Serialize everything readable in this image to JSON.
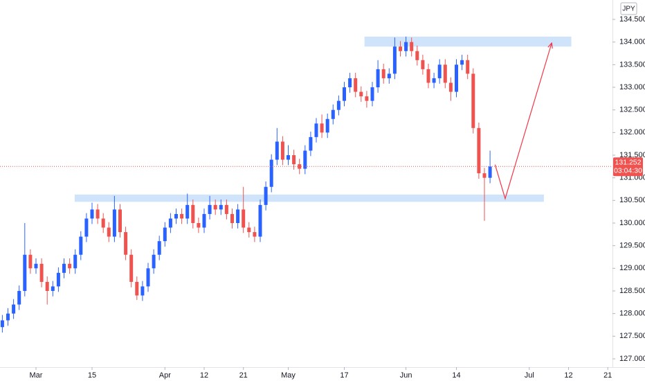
{
  "chart_data": {
    "type": "candlestick",
    "currency": "JPY",
    "last_price": 131.252,
    "countdown": "03:04:30",
    "up_color": "#2962ff",
    "down_color": "#ef5350",
    "zone_color": "#cfe3fa",
    "projection_color": "#f23645",
    "xlim": [
      -6.42,
      102.84
    ],
    "ylim": [
      126.816,
      134.929
    ],
    "xticks": [
      {
        "value": 0,
        "label": "Mar"
      },
      {
        "value": 10,
        "label": "15"
      },
      {
        "value": 23,
        "label": "Apr"
      },
      {
        "value": 30,
        "label": "12"
      },
      {
        "value": 37,
        "label": "21"
      },
      {
        "value": 45,
        "label": "May"
      },
      {
        "value": 55,
        "label": "17"
      },
      {
        "value": 66,
        "label": "Jun"
      },
      {
        "value": 75,
        "label": "14"
      },
      {
        "value": 88,
        "label": "Jul"
      },
      {
        "value": 95,
        "label": "12"
      },
      {
        "value": 102,
        "label": "21"
      }
    ],
    "yticks": [
      {
        "value": 127.0,
        "label": "127.000"
      },
      {
        "value": 127.5,
        "label": "127.500"
      },
      {
        "value": 128.0,
        "label": "128.000"
      },
      {
        "value": 128.5,
        "label": "128.500"
      },
      {
        "value": 129.0,
        "label": "129.000"
      },
      {
        "value": 129.5,
        "label": "129.500"
      },
      {
        "value": 130.0,
        "label": "130.000"
      },
      {
        "value": 130.5,
        "label": "130.500"
      },
      {
        "value": 131.0,
        "label": "131.000"
      },
      {
        "value": 131.5,
        "label": "131.500"
      },
      {
        "value": 132.0,
        "label": "132.000"
      },
      {
        "value": 132.5,
        "label": "132.500"
      },
      {
        "value": 133.0,
        "label": "133.000"
      },
      {
        "value": 133.5,
        "label": "133.500"
      },
      {
        "value": 134.0,
        "label": "134.000"
      },
      {
        "value": 134.5,
        "label": "134.500"
      }
    ],
    "x": [
      -6,
      -5,
      -4,
      -3,
      -2,
      -1,
      0,
      1,
      2,
      3,
      4,
      5,
      6,
      7,
      8,
      9,
      10,
      11,
      12,
      13,
      14,
      15,
      16,
      17,
      18,
      19,
      20,
      21,
      22,
      23,
      24,
      25,
      26,
      27,
      28,
      29,
      30,
      31,
      32,
      33,
      34,
      35,
      36,
      37,
      38,
      39,
      40,
      41,
      42,
      43,
      44,
      45,
      46,
      47,
      48,
      49,
      50,
      51,
      52,
      53,
      54,
      55,
      56,
      57,
      58,
      59,
      60,
      61,
      62,
      63,
      64,
      65,
      66,
      67,
      68,
      69,
      70,
      71,
      72,
      73,
      74,
      75,
      76,
      77,
      78,
      79,
      80,
      81
    ],
    "open": [
      127.7,
      127.85,
      128.0,
      128.2,
      128.5,
      129.3,
      129.0,
      129.1,
      128.7,
      128.5,
      128.6,
      128.9,
      129.1,
      129.0,
      129.3,
      129.7,
      130.1,
      130.3,
      130.1,
      129.9,
      129.7,
      130.3,
      129.8,
      129.3,
      128.7,
      128.4,
      128.6,
      129.0,
      129.3,
      129.6,
      129.9,
      130.1,
      130.2,
      130.1,
      130.4,
      130.0,
      129.9,
      130.2,
      130.4,
      130.3,
      130.4,
      130.2,
      130.0,
      130.3,
      129.9,
      129.8,
      129.7,
      130.4,
      130.8,
      131.4,
      131.8,
      131.4,
      131.5,
      131.3,
      131.2,
      131.6,
      131.9,
      132.2,
      132.0,
      132.3,
      132.5,
      132.7,
      133.0,
      133.2,
      132.9,
      132.8,
      132.7,
      133.0,
      133.4,
      133.2,
      133.3,
      133.9,
      133.8,
      134.0,
      133.8,
      133.6,
      133.4,
      133.1,
      133.2,
      133.5,
      133.1,
      132.9,
      133.5,
      133.6,
      133.3,
      132.1,
      131.1,
      131.0
    ],
    "high": [
      127.97,
      128.12,
      128.32,
      128.62,
      130.0,
      129.42,
      129.22,
      129.22,
      128.82,
      128.72,
      129.02,
      129.22,
      129.22,
      129.42,
      129.82,
      130.22,
      130.45,
      130.42,
      130.22,
      130.02,
      130.6,
      130.42,
      129.92,
      129.42,
      128.82,
      128.72,
      129.12,
      129.42,
      129.72,
      130.02,
      130.22,
      130.32,
      130.32,
      130.65,
      130.52,
      130.12,
      130.32,
      130.6,
      130.52,
      130.52,
      130.52,
      130.32,
      130.42,
      130.8,
      130.02,
      129.92,
      130.52,
      130.92,
      131.52,
      132.1,
      131.92,
      131.72,
      131.62,
      131.42,
      131.72,
      132.02,
      132.32,
      132.4,
      132.42,
      132.62,
      132.82,
      133.12,
      133.32,
      133.32,
      133.02,
      132.92,
      133.12,
      133.6,
      133.52,
      133.42,
      134.1,
      134.02,
      134.12,
      134.1,
      133.92,
      133.72,
      133.52,
      133.32,
      133.62,
      133.62,
      133.22,
      133.62,
      133.72,
      133.72,
      133.42,
      132.22,
      131.22,
      131.6
    ],
    "low": [
      127.58,
      127.73,
      127.88,
      128.08,
      128.38,
      128.88,
      128.88,
      128.58,
      128.2,
      128.38,
      128.48,
      128.78,
      128.88,
      128.88,
      129.18,
      129.58,
      129.98,
      129.98,
      129.78,
      129.58,
      129.58,
      129.68,
      129.18,
      128.58,
      128.3,
      128.28,
      128.48,
      128.88,
      129.18,
      129.48,
      129.78,
      129.98,
      129.98,
      129.98,
      129.88,
      129.78,
      129.78,
      130.08,
      130.18,
      130.18,
      130.08,
      129.88,
      129.88,
      129.78,
      129.68,
      129.58,
      129.58,
      130.28,
      130.68,
      131.28,
      131.28,
      131.28,
      131.18,
      131.08,
      131.08,
      131.48,
      131.78,
      131.88,
      131.88,
      132.18,
      132.38,
      132.58,
      132.88,
      132.78,
      132.68,
      132.55,
      132.58,
      132.88,
      133.08,
      133.08,
      133.18,
      133.68,
      133.68,
      133.68,
      133.48,
      133.28,
      132.98,
      132.98,
      133.08,
      132.98,
      132.7,
      132.78,
      133.38,
      133.18,
      131.98,
      130.98,
      130.05,
      130.88
    ],
    "close": [
      127.85,
      128.0,
      128.2,
      128.5,
      129.3,
      129.0,
      129.1,
      128.7,
      128.5,
      128.6,
      128.9,
      129.1,
      129.0,
      129.3,
      129.7,
      130.1,
      130.3,
      130.1,
      129.9,
      129.7,
      130.3,
      129.8,
      129.3,
      128.7,
      128.4,
      128.6,
      129.0,
      129.3,
      129.6,
      129.9,
      130.1,
      130.2,
      130.1,
      130.4,
      130.0,
      129.9,
      130.2,
      130.4,
      130.3,
      130.4,
      130.2,
      130.0,
      130.3,
      129.9,
      129.8,
      129.7,
      130.4,
      130.8,
      131.4,
      131.8,
      131.4,
      131.5,
      131.3,
      131.2,
      131.6,
      131.9,
      132.2,
      132.0,
      132.3,
      132.5,
      132.7,
      133.0,
      133.2,
      132.9,
      132.8,
      132.7,
      133.0,
      133.4,
      133.2,
      133.3,
      133.9,
      133.8,
      134.0,
      133.8,
      133.6,
      133.4,
      133.1,
      133.2,
      133.5,
      133.1,
      132.9,
      133.5,
      133.6,
      133.3,
      132.1,
      131.1,
      131.0,
      131.25
    ],
    "zones": [
      {
        "from": 130.47,
        "to": 130.63,
        "x": [
          6.9,
          90.6
        ]
      },
      {
        "from": 133.9,
        "to": 134.12,
        "x": [
          58.6,
          95.5
        ]
      }
    ],
    "projection": {
      "x": [
        81.9,
        83.7,
        92.0
      ],
      "y": [
        131.29,
        130.54,
        133.98
      ]
    }
  }
}
